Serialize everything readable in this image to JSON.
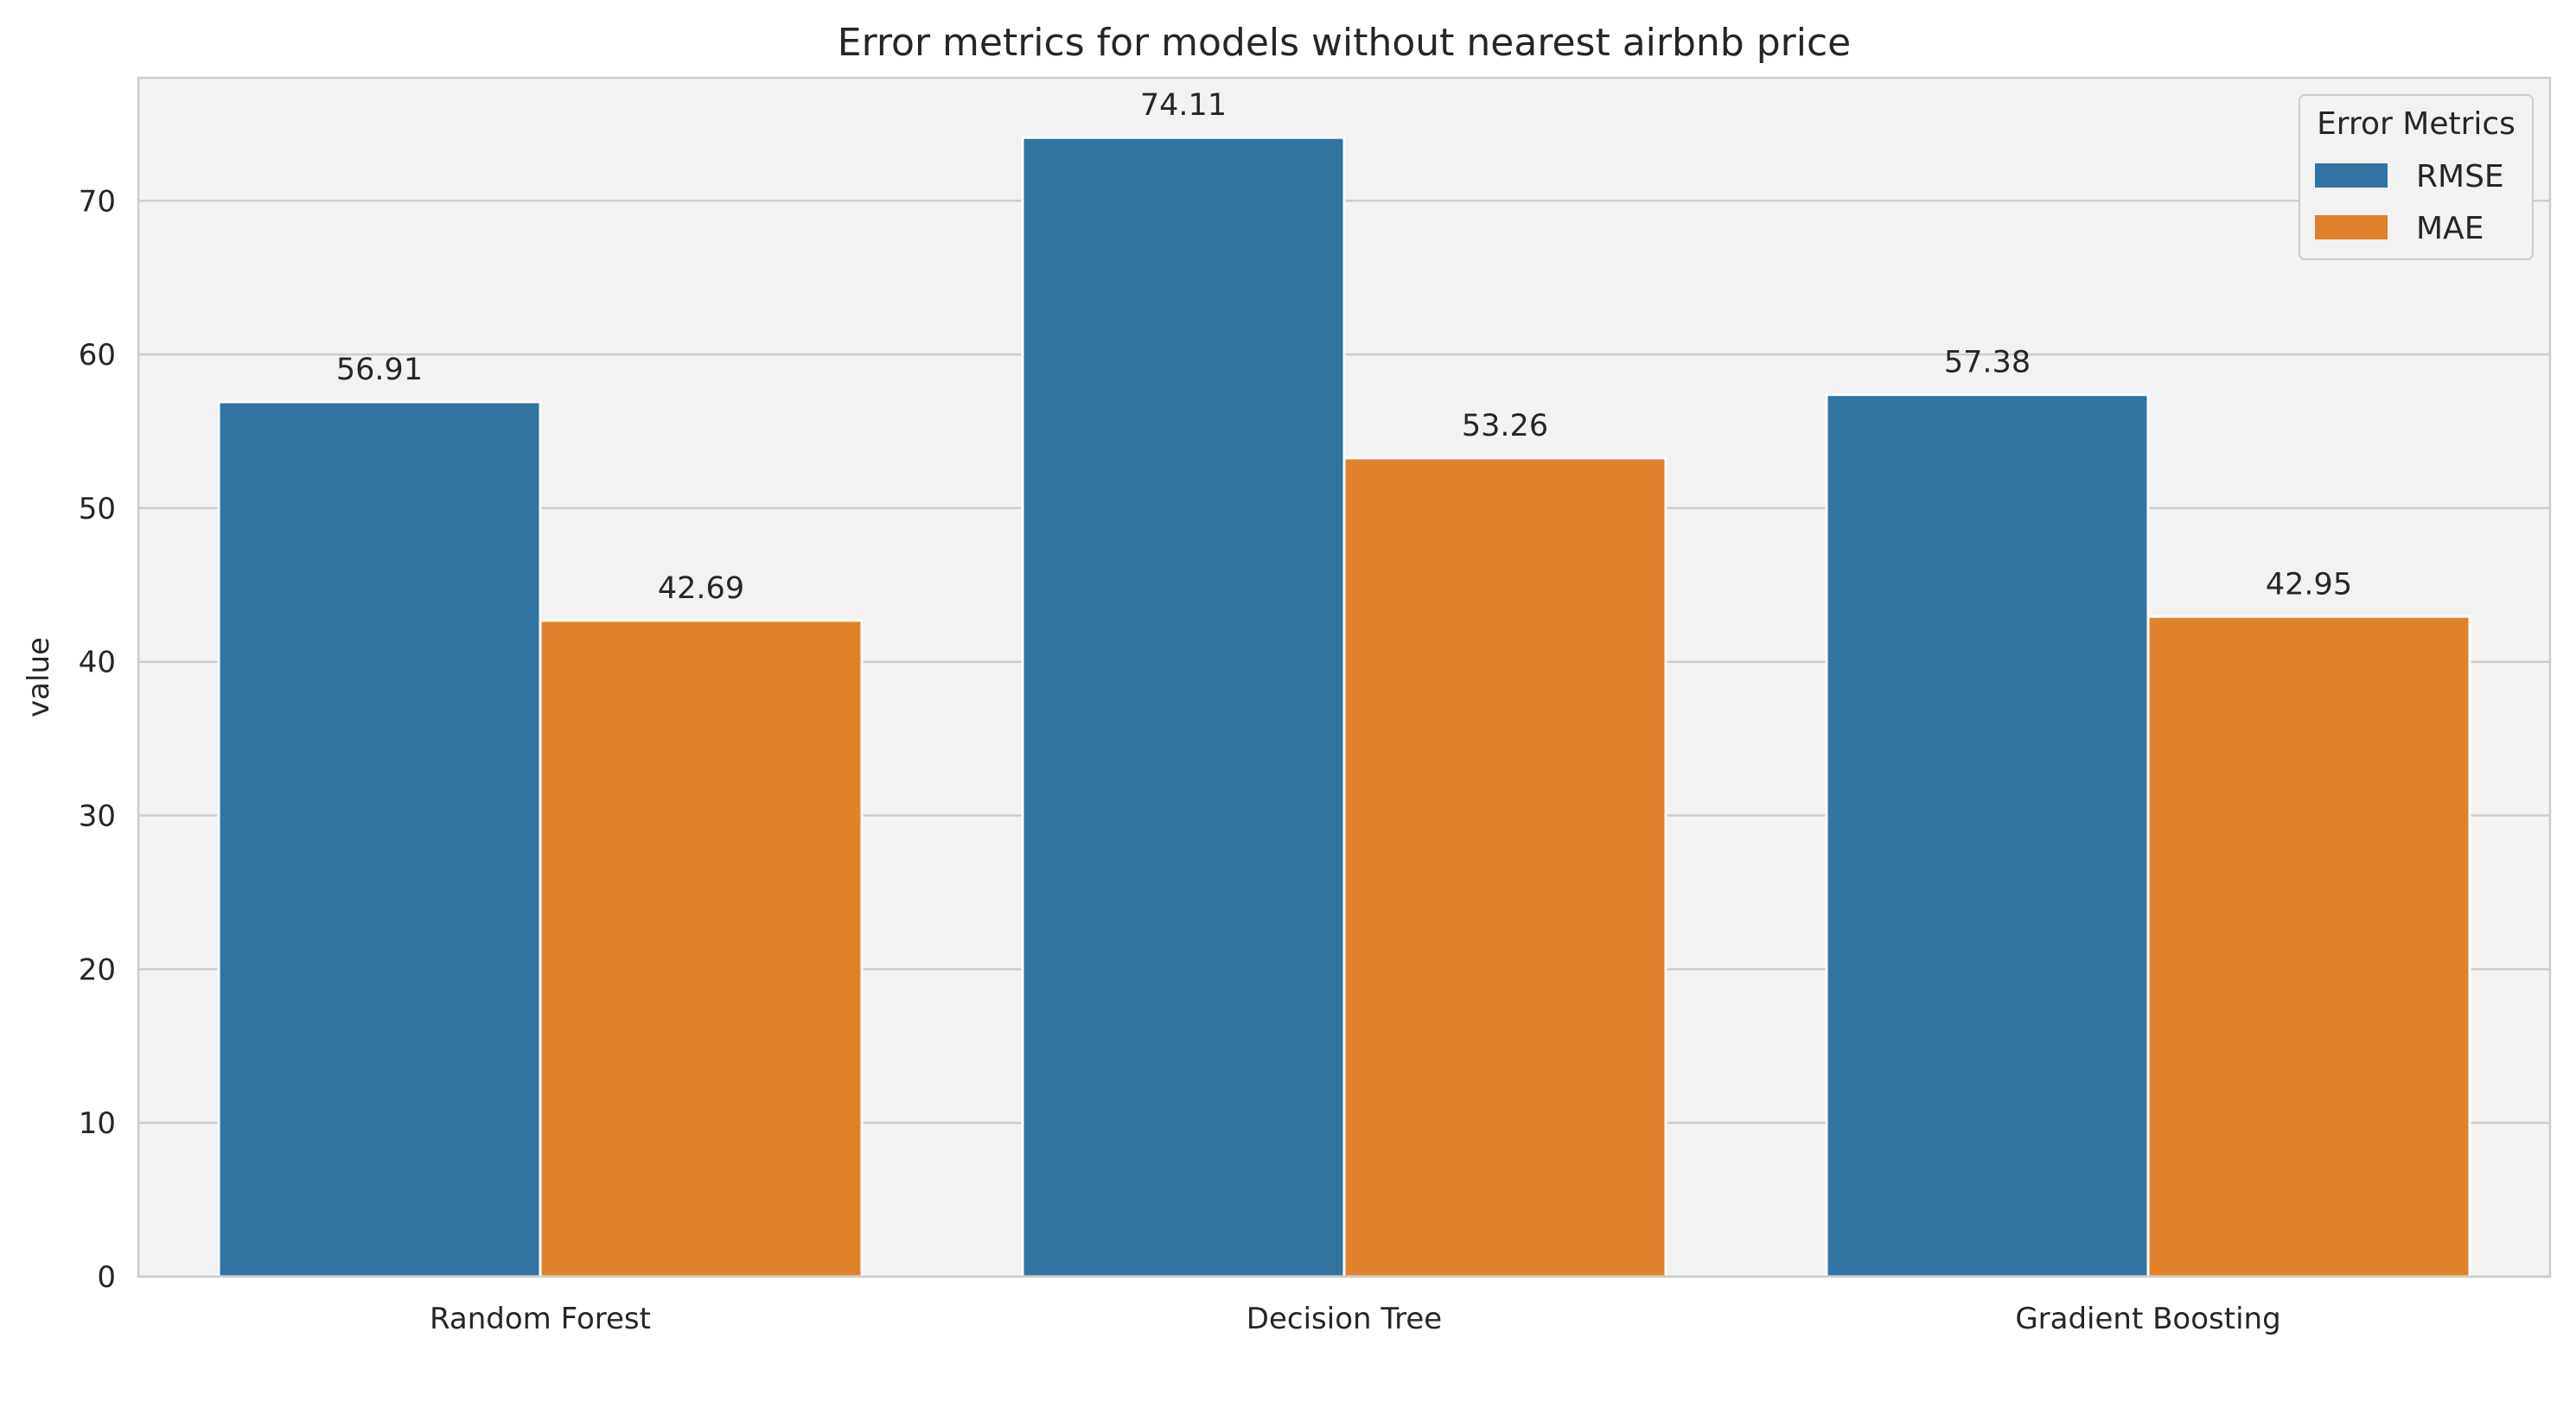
{
  "chart_data": {
    "type": "bar",
    "title": "Error metrics for models without nearest airbnb price",
    "xlabel": "",
    "ylabel": "value",
    "categories": [
      "Random Forest",
      "Decision Tree",
      "Gradient Boosting"
    ],
    "series": [
      {
        "name": "RMSE",
        "values": [
          56.91,
          74.11,
          57.38
        ],
        "color": "#3274a1"
      },
      {
        "name": "MAE",
        "values": [
          42.69,
          53.26,
          42.95
        ],
        "color": "#e1812c"
      }
    ],
    "data_labels": [
      [
        "56.91",
        "74.11",
        "57.38"
      ],
      [
        "42.69",
        "53.26",
        "42.95"
      ]
    ],
    "ylim": [
      0,
      78
    ],
    "yticks": [
      0,
      10,
      20,
      30,
      40,
      50,
      60,
      70
    ],
    "grid": true,
    "legend": {
      "title": "Error Metrics",
      "placement": "top-right"
    },
    "background": "#f2f2f2",
    "grid_color": "#cccccc"
  }
}
